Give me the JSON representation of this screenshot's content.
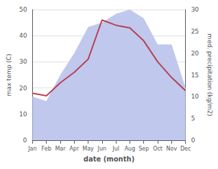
{
  "chart_data": {
    "type": "line",
    "categories": [
      "Jan",
      "Feb",
      "Mar",
      "Apr",
      "May",
      "Jun",
      "Jul",
      "Aug",
      "Sep",
      "Oct",
      "Nov",
      "Dec"
    ],
    "series": [
      {
        "type": "line",
        "color": "#b84050",
        "values": [
          18,
          17,
          22,
          26,
          31,
          46,
          44,
          43,
          38,
          30,
          24,
          19
        ]
      },
      {
        "type": "area",
        "color": "#c0c8ee",
        "axis": "y2",
        "values": [
          10,
          9,
          15,
          20,
          26,
          27,
          29,
          30,
          28,
          22,
          22,
          12
        ]
      }
    ],
    "xlabel": "date (month)",
    "ylabel": "max temp (C)",
    "y2label": "med. precipitation (kg/m2)",
    "ylim": [
      0,
      50
    ],
    "yticks": [
      0,
      10,
      20,
      30,
      40,
      50
    ],
    "y2lim": [
      0,
      30
    ],
    "y2ticks": [
      0,
      5,
      10,
      15,
      20,
      25,
      30
    ],
    "grid": true
  }
}
